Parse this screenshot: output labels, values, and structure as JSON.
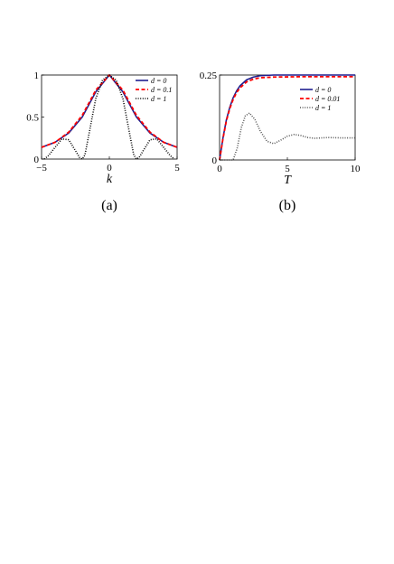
{
  "colors": {
    "solid": "#1f1f8f",
    "dashed": "#ff0000",
    "dotted": "#000000",
    "gray": "#555555"
  },
  "chart_data": [
    {
      "type": "line",
      "caption": "(a)",
      "xlabel": "k",
      "ylabel": "",
      "xlim": [
        -5,
        5
      ],
      "ylim": [
        0,
        1
      ],
      "xticks": [
        -5,
        0,
        5
      ],
      "yticks": [
        0,
        0.5,
        1
      ],
      "xtick_labels": [
        "−5",
        "0",
        "5"
      ],
      "ytick_labels": [
        "0",
        "0.5",
        "1"
      ],
      "legend_position": "top-right",
      "series": [
        {
          "name": "d = 0",
          "style": "solid",
          "x": [
            -5,
            -4,
            -3,
            -2,
            -1,
            0,
            1,
            2,
            3,
            4,
            5
          ],
          "y": [
            0.14,
            0.2,
            0.31,
            0.5,
            0.8,
            1,
            0.8,
            0.5,
            0.31,
            0.2,
            0.14
          ]
        },
        {
          "name": "d = 0.1",
          "style": "dashed",
          "x": [
            -5,
            -4,
            -3,
            -2,
            -1,
            0,
            1,
            2,
            3,
            4,
            5
          ],
          "y": [
            0.14,
            0.2,
            0.32,
            0.52,
            0.82,
            1,
            0.82,
            0.52,
            0.32,
            0.2,
            0.14
          ]
        },
        {
          "name": "d = 1",
          "style": "dotted",
          "x": [
            -4.8,
            -4.5,
            -4,
            -3.5,
            -3,
            -2.5,
            -2.2,
            -2,
            -1.8,
            -1.5,
            -1,
            -0.5,
            0,
            0.5,
            1,
            1.5,
            1.8,
            2,
            2.2,
            2.5,
            3,
            3.5,
            4,
            4.5,
            4.8
          ],
          "y": [
            0.0,
            0.04,
            0.14,
            0.24,
            0.23,
            0.1,
            0.02,
            0.0,
            0.05,
            0.3,
            0.72,
            0.94,
            1,
            0.94,
            0.72,
            0.3,
            0.05,
            0.0,
            0.02,
            0.1,
            0.23,
            0.24,
            0.14,
            0.04,
            0.0
          ]
        }
      ]
    },
    {
      "type": "line",
      "caption": "(b)",
      "xlabel": "T",
      "ylabel": "",
      "xlim": [
        0,
        10
      ],
      "ylim": [
        0,
        0.25
      ],
      "xticks": [
        0,
        5,
        10
      ],
      "yticks": [
        0,
        0.25
      ],
      "xtick_labels": [
        "0",
        "5",
        "10"
      ],
      "ytick_labels": [
        "0",
        "0.25"
      ],
      "legend_position": "right",
      "series": [
        {
          "name": "d = 0",
          "style": "solid",
          "x": [
            0,
            0.25,
            0.5,
            0.75,
            1,
            1.25,
            1.5,
            2,
            2.5,
            3,
            4,
            6,
            8,
            10
          ],
          "y": [
            0,
            0.065,
            0.118,
            0.155,
            0.183,
            0.203,
            0.218,
            0.236,
            0.244,
            0.248,
            0.25,
            0.25,
            0.25,
            0.25
          ]
        },
        {
          "name": "d = 0.01",
          "style": "dashed",
          "x": [
            0,
            0.25,
            0.5,
            0.75,
            1,
            1.25,
            1.5,
            2,
            2.5,
            3,
            4,
            6,
            8,
            10
          ],
          "y": [
            0,
            0.063,
            0.115,
            0.151,
            0.178,
            0.198,
            0.212,
            0.23,
            0.238,
            0.242,
            0.244,
            0.245,
            0.245,
            0.245
          ]
        },
        {
          "name": "d = 1",
          "style": "dotted",
          "x": [
            0,
            1,
            1.3,
            1.6,
            1.9,
            2.2,
            2.6,
            3,
            3.5,
            4,
            4.5,
            5,
            5.5,
            6,
            6.5,
            7,
            8,
            9,
            10
          ],
          "y": [
            0,
            0,
            0.035,
            0.095,
            0.13,
            0.138,
            0.12,
            0.085,
            0.055,
            0.048,
            0.058,
            0.07,
            0.075,
            0.072,
            0.066,
            0.064,
            0.066,
            0.065,
            0.065
          ]
        }
      ]
    }
  ]
}
